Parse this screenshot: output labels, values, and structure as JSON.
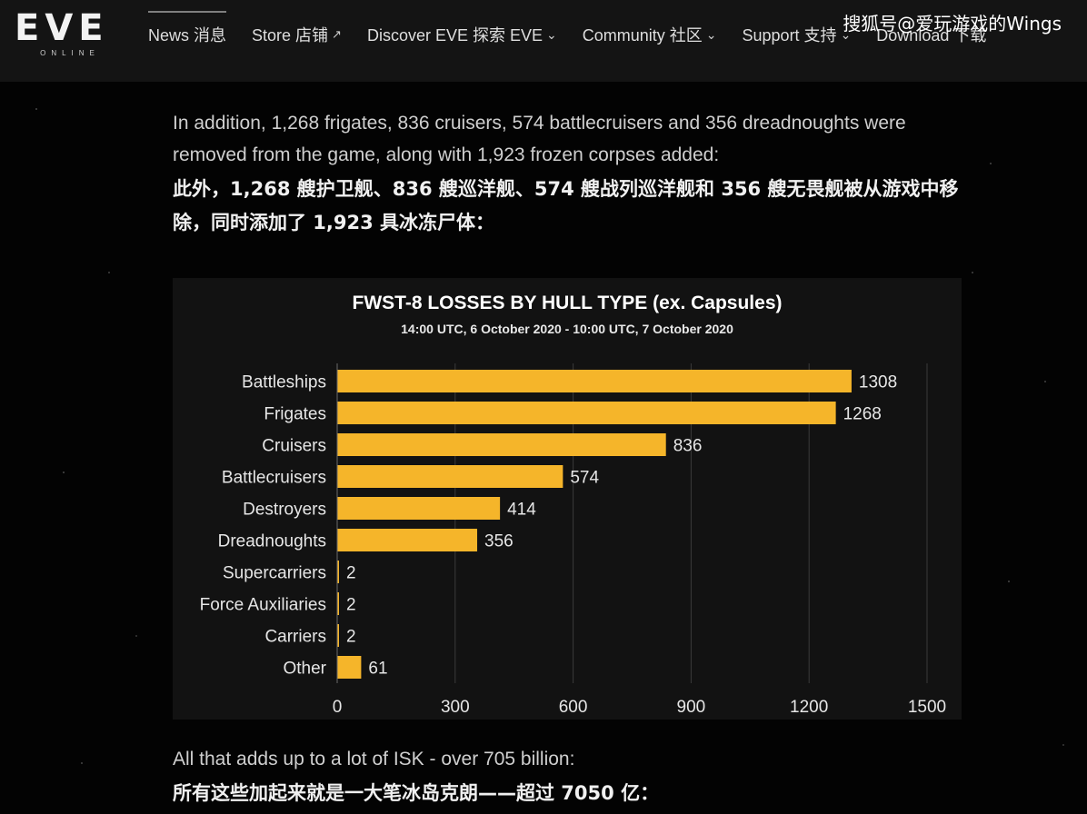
{
  "header": {
    "logo_text": "EVE",
    "logo_sub": "ONLINE",
    "nav": [
      {
        "label": "News  消息",
        "icon": ""
      },
      {
        "label": "Store  店铺",
        "icon": "external-link-icon"
      },
      {
        "label": "Discover EVE  探索 EVE",
        "icon": "chevron-down-icon"
      },
      {
        "label": "Community  社区",
        "icon": "chevron-down-icon"
      },
      {
        "label": "Support  支持",
        "icon": "chevron-down-icon"
      },
      {
        "label": "Download  下载",
        "icon": ""
      }
    ],
    "watermark": "搜狐号@爱玩游戏的Wings"
  },
  "article": {
    "para1_en": "In addition, 1,268 frigates, 836 cruisers, 574 battlecruisers and 356 dreadnoughts were removed from the game, along with 1,923 frozen corpses added:",
    "para1_cn": "此外，1,268 艘护卫舰、836 艘巡洋舰、574 艘战列巡洋舰和 356 艘无畏舰被从游戏中移除，同时添加了 1,923 具冰冻尸体：",
    "para2_en": "All that adds up to a lot of ISK - over 705 billion:",
    "para2_cn": "所有这些加起来就是一大笔冰岛克朗——超过 7050 亿："
  },
  "chart_data": {
    "type": "bar",
    "orientation": "horizontal",
    "title": "FWST-8 LOSSES BY HULL TYPE (ex. Capsules)",
    "subtitle": "14:00 UTC, 6 October 2020 - 10:00 UTC, 7 October 2020",
    "categories": [
      "Battleships",
      "Frigates",
      "Cruisers",
      "Battlecruisers",
      "Destroyers",
      "Dreadnoughts",
      "Supercarriers",
      "Force Auxiliaries",
      "Carriers",
      "Other"
    ],
    "values": [
      1308,
      1268,
      836,
      574,
      414,
      356,
      2,
      2,
      2,
      61
    ],
    "xlim": [
      0,
      1500
    ],
    "xticks": [
      0,
      300,
      600,
      900,
      1200,
      1500
    ],
    "grid": true,
    "bar_color": "#f5b52a"
  }
}
